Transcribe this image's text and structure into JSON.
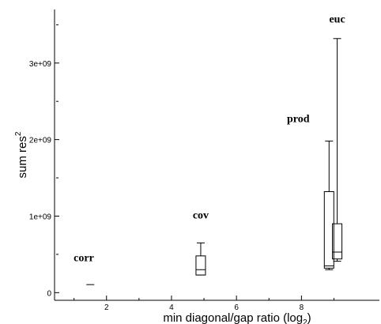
{
  "chart_data": {
    "type": "box",
    "xlabel": "min diagonal/gap ratio (log",
    "xlabel_sub": "2",
    "xlabel_close": ")",
    "ylabel": "sum res",
    "ylabel_sup": "2",
    "xlim": [
      0.4,
      10.4
    ],
    "ylim": [
      -100000000,
      3700000000
    ],
    "xticks": [
      2,
      4,
      6,
      8
    ],
    "xtick_labels": [
      "2",
      "4",
      "6",
      "8"
    ],
    "yticks": [
      0,
      1000000000,
      2000000000,
      3000000000
    ],
    "ytick_labels": [
      "0",
      "1e+09",
      "2e+09",
      "3e+09"
    ],
    "boxes": [
      {
        "label": "corr",
        "x": 1.5,
        "whislo": 105000000,
        "q1": 105000000,
        "med": 105000000,
        "q3": 112000000,
        "whishi": 112000000,
        "label_x": 1.3,
        "label_y": 410000000
      },
      {
        "label": "cov",
        "x": 4.9,
        "whislo": 230000000,
        "q1": 230000000,
        "med": 300000000,
        "q3": 480000000,
        "whishi": 650000000,
        "label_x": 4.9,
        "label_y": 970000000
      },
      {
        "label": "prod",
        "x": 8.85,
        "whislo": 300000000,
        "q1": 320000000,
        "med": 350000000,
        "q3": 1320000000,
        "whishi": 1980000000,
        "label_x": 7.9,
        "label_y": 2230000000
      },
      {
        "label": "euc",
        "x": 9.1,
        "whislo": 410000000,
        "q1": 440000000,
        "med": 530000000,
        "q3": 900000000,
        "whishi": 3320000000,
        "label_x": 9.1,
        "label_y": 3530000000
      }
    ]
  }
}
